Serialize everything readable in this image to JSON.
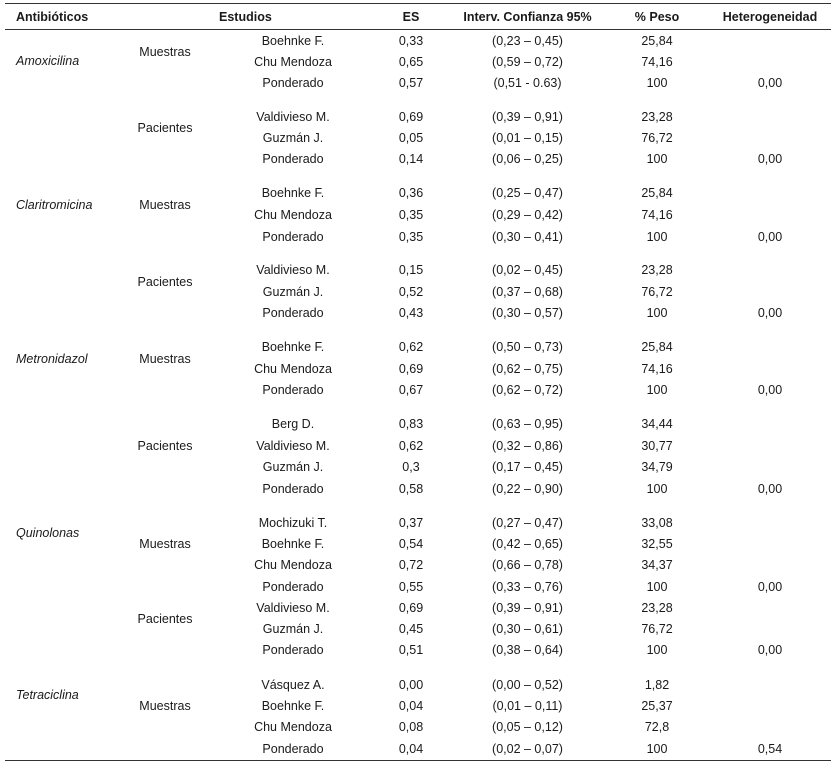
{
  "headers": {
    "antibiotic": "Antibióticos",
    "studies": "Estudios",
    "es": "ES",
    "ci": "Interv. Confianza 95%",
    "weight": "% Peso",
    "heterogeneity": "Heterogeneidad"
  },
  "antibiotics": [
    {
      "name": "Amoxicilina"
    },
    {
      "name": "Claritromicina"
    },
    {
      "name": "Metronidazol"
    },
    {
      "name": "Quinolonas"
    },
    {
      "name": "Tetraciclina"
    }
  ],
  "groups": [
    {
      "label": "Muestras"
    },
    {
      "label": "Pacientes"
    },
    {
      "label": "Muestras"
    },
    {
      "label": "Pacientes"
    },
    {
      "label": "Muestras"
    },
    {
      "label": "Pacientes"
    },
    {
      "label": "Muestras"
    },
    {
      "label": "Pacientes"
    },
    {
      "label": "Muestras"
    }
  ],
  "rows": [
    {
      "study": "Boehnke F.",
      "es": "0,33",
      "ci": "(0,23 – 0,45)",
      "weight": "25,84",
      "het": ""
    },
    {
      "study": "Chu Mendoza",
      "es": "0,65",
      "ci": "(0,59 – 0,72)",
      "weight": "74,16",
      "het": ""
    },
    {
      "study": "Ponderado",
      "es": "0,57",
      "ci": "(0,51 - 0.63)",
      "weight": "100",
      "het": "0,00"
    },
    {
      "study": "Valdivieso M.",
      "es": "0,69",
      "ci": "(0,39 – 0,91)",
      "weight": "23,28",
      "het": ""
    },
    {
      "study": "Guzmán J.",
      "es": "0,05",
      "ci": "(0,01 – 0,15)",
      "weight": "76,72",
      "het": ""
    },
    {
      "study": "Ponderado",
      "es": "0,14",
      "ci": "(0,06 – 0,25)",
      "weight": "100",
      "het": "0,00"
    },
    {
      "study": "Boehnke F.",
      "es": "0,36",
      "ci": "(0,25 – 0,47)",
      "weight": "25,84",
      "het": ""
    },
    {
      "study": "Chu Mendoza",
      "es": "0,35",
      "ci": "(0,29 – 0,42)",
      "weight": "74,16",
      "het": ""
    },
    {
      "study": "Ponderado",
      "es": "0,35",
      "ci": "(0,30 – 0,41)",
      "weight": "100",
      "het": "0,00"
    },
    {
      "study": "Valdivieso M.",
      "es": "0,15",
      "ci": "(0,02 – 0,45)",
      "weight": "23,28",
      "het": ""
    },
    {
      "study": "Guzmán J.",
      "es": "0,52",
      "ci": "(0,37 – 0,68)",
      "weight": "76,72",
      "het": ""
    },
    {
      "study": "Ponderado",
      "es": "0,43",
      "ci": "(0,30 – 0,57)",
      "weight": "100",
      "het": "0,00"
    },
    {
      "study": "Boehnke F.",
      "es": "0,62",
      "ci": "(0,50 – 0,73)",
      "weight": "25,84",
      "het": ""
    },
    {
      "study": "Chu Mendoza",
      "es": "0,69",
      "ci": "(0,62 – 0,75)",
      "weight": "74,16",
      "het": ""
    },
    {
      "study": "Ponderado",
      "es": "0,67",
      "ci": "(0,62 – 0,72)",
      "weight": "100",
      "het": "0,00"
    },
    {
      "study": "Berg D.",
      "es": "0,83",
      "ci": "(0,63 – 0,95)",
      "weight": "34,44",
      "het": ""
    },
    {
      "study": "Valdivieso M.",
      "es": "0,62",
      "ci": "(0,32 – 0,86)",
      "weight": "30,77",
      "het": ""
    },
    {
      "study": "Guzmán J.",
      "es": "0,3",
      "ci": "(0,17 – 0,45)",
      "weight": "34,79",
      "het": ""
    },
    {
      "study": "Ponderado",
      "es": "0,58",
      "ci": "(0,22 – 0,90)",
      "weight": "100",
      "het": "0,00"
    },
    {
      "study": "Mochizuki T.",
      "es": "0,37",
      "ci": "(0,27 – 0,47)",
      "weight": "33,08",
      "het": ""
    },
    {
      "study": "Boehnke F.",
      "es": "0,54",
      "ci": "(0,42 – 0,65)",
      "weight": "32,55",
      "het": ""
    },
    {
      "study": "Chu Mendoza",
      "es": "0,72",
      "ci": "(0,66 – 0,78)",
      "weight": "34,37",
      "het": ""
    },
    {
      "study": "Ponderado",
      "es": "0,55",
      "ci": "(0,33 – 0,76)",
      "weight": "100",
      "het": "0,00"
    },
    {
      "study": "Valdivieso M.",
      "es": "0,69",
      "ci": "(0,39 – 0,91)",
      "weight": "23,28",
      "het": ""
    },
    {
      "study": "Guzmán J.",
      "es": "0,45",
      "ci": "(0,30 – 0,61)",
      "weight": "76,72",
      "het": ""
    },
    {
      "study": "Ponderado",
      "es": "0,51",
      "ci": "(0,38 – 0,64)",
      "weight": "100",
      "het": "0,00"
    },
    {
      "study": "Vásquez A.",
      "es": "0,00",
      "ci": "(0,00 – 0,52)",
      "weight": "1,82",
      "het": ""
    },
    {
      "study": "Boehnke F.",
      "es": "0,04",
      "ci": "(0,01 – 0,11)",
      "weight": "25,37",
      "het": ""
    },
    {
      "study": "Chu Mendoza",
      "es": "0,08",
      "ci": "(0,05 – 0,12)",
      "weight": "72,8",
      "het": ""
    },
    {
      "study": "Ponderado",
      "es": "0,04",
      "ci": "(0,02 – 0,07)",
      "weight": "100",
      "het": "0,54"
    }
  ]
}
